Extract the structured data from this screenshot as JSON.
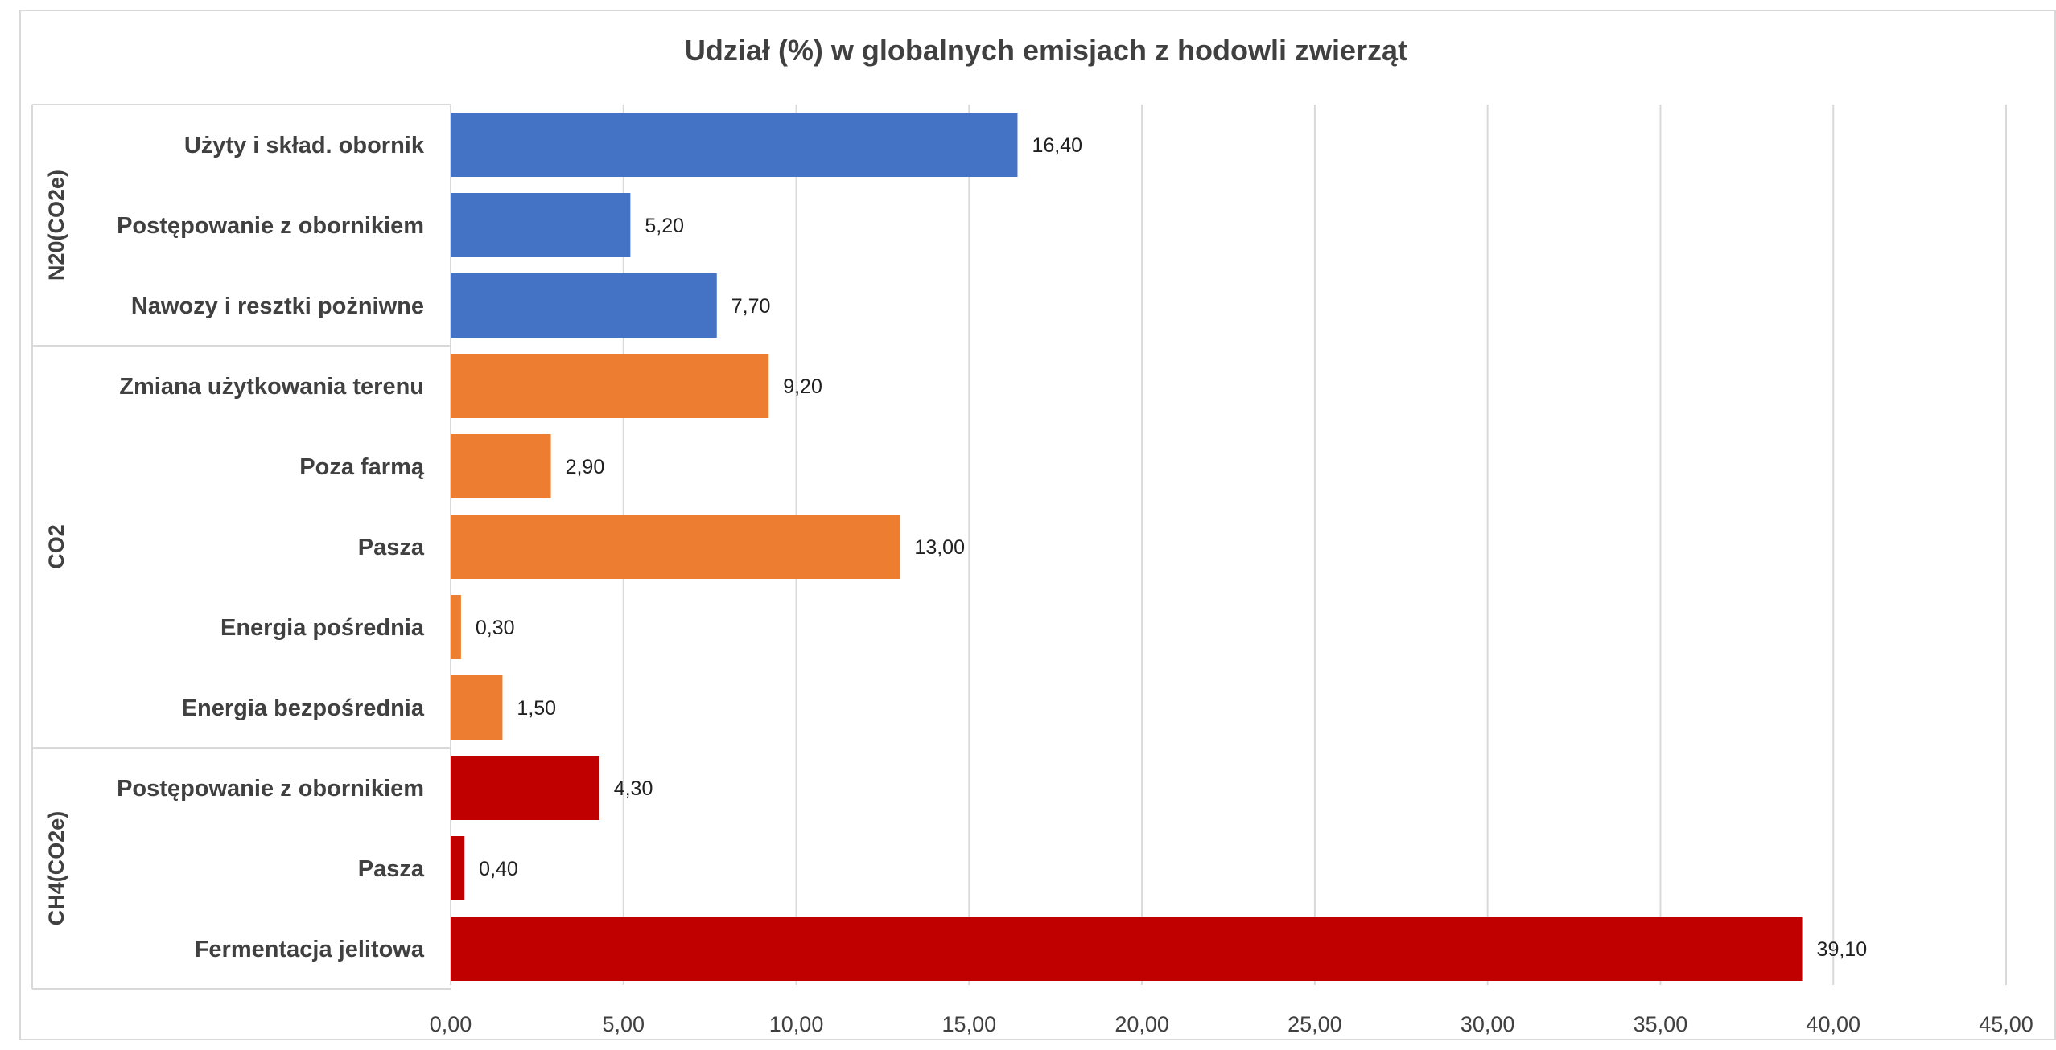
{
  "chart_data": {
    "type": "bar",
    "orientation": "horizontal",
    "title": "Udział (%) w globalnych emisjach z hodowli zwierząt",
    "xlabel": "",
    "ylabel": "",
    "xlim": [
      0,
      45
    ],
    "x_ticks": [
      0,
      5,
      10,
      15,
      20,
      25,
      30,
      35,
      40,
      45
    ],
    "x_tick_labels": [
      "0,00",
      "5,00",
      "10,00",
      "15,00",
      "20,00",
      "25,00",
      "30,00",
      "35,00",
      "40,00",
      "45,00"
    ],
    "grid": "vertical",
    "legend": "none",
    "groups": [
      {
        "name": "N20(CO2e)",
        "color": "#4472C4",
        "items": [
          {
            "label": "Użyty i skład. obornik",
            "value": 16.4,
            "value_label": "16,40"
          },
          {
            "label": "Postępowanie z obornikiem",
            "value": 5.2,
            "value_label": "5,20"
          },
          {
            "label": "Nawozy i resztki pożniwne",
            "value": 7.7,
            "value_label": "7,70"
          }
        ]
      },
      {
        "name": "CO2",
        "color": "#ED7D31",
        "items": [
          {
            "label": "Zmiana użytkowania terenu",
            "value": 9.2,
            "value_label": "9,20"
          },
          {
            "label": "Poza farmą",
            "value": 2.9,
            "value_label": "2,90"
          },
          {
            "label": "Pasza",
            "value": 13.0,
            "value_label": "13,00"
          },
          {
            "label": "Energia pośrednia",
            "value": 0.3,
            "value_label": "0,30"
          },
          {
            "label": "Energia bezpośrednia",
            "value": 1.5,
            "value_label": "1,50"
          }
        ]
      },
      {
        "name": "CH4(CO2e)",
        "color": "#C00000",
        "items": [
          {
            "label": "Postępowanie z obornikiem",
            "value": 4.3,
            "value_label": "4,30"
          },
          {
            "label": "Pasza",
            "value": 0.4,
            "value_label": "0,40"
          },
          {
            "label": "Fermentacja jelitowa",
            "value": 39.1,
            "value_label": "39,10"
          }
        ]
      }
    ]
  }
}
